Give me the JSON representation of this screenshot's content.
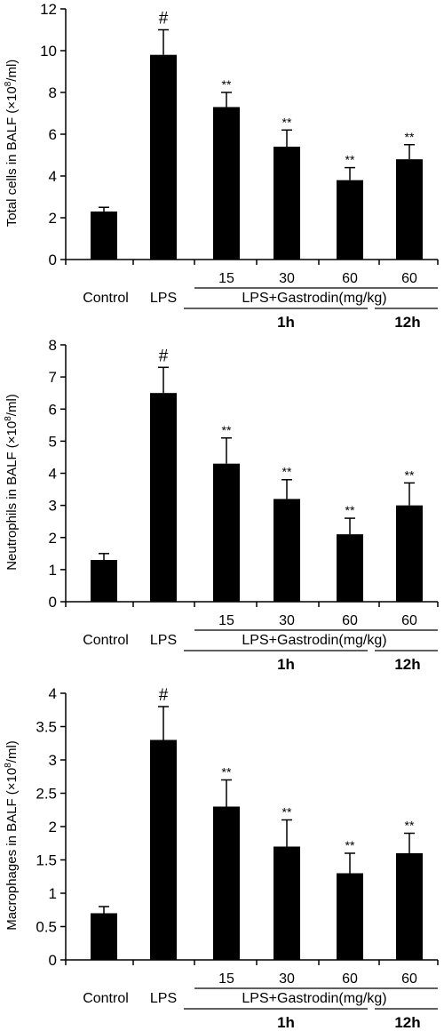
{
  "theme": {
    "bar_color": "#000000",
    "axis_color": "#000000",
    "background": "#ffffff"
  },
  "labels": {
    "group": "LPS+Gastrodin(mg/kg)",
    "time_1h": "1h",
    "time_12h": "12h"
  },
  "chart_data": [
    {
      "type": "bar",
      "title": "",
      "ylabel": "Total cells in BALF (×10⁸/ml)",
      "ylabel_main": "Total cells in BALF (×10",
      "ylabel_sup": "8",
      "ylabel_tail": "/ml)",
      "categories": [
        "Control",
        "LPS",
        "15",
        "30",
        "60",
        "60"
      ],
      "values": [
        2.3,
        9.8,
        7.3,
        5.4,
        3.8,
        4.8
      ],
      "errors": [
        0.2,
        1.2,
        0.7,
        0.8,
        0.6,
        0.7
      ],
      "significance": [
        "",
        "#",
        "**",
        "**",
        "**",
        "**"
      ],
      "ylim": [
        0,
        12
      ],
      "yticks": [
        "0",
        "2",
        "4",
        "6",
        "8",
        "10",
        "12"
      ],
      "grid": false
    },
    {
      "type": "bar",
      "title": "",
      "ylabel": "Neutrophils in BALF (×10⁸/ml)",
      "ylabel_main": "Neutrophils in BALF (×10",
      "ylabel_sup": "8",
      "ylabel_tail": "/ml)",
      "categories": [
        "Control",
        "LPS",
        "15",
        "30",
        "60",
        "60"
      ],
      "values": [
        1.3,
        6.5,
        4.3,
        3.2,
        2.1,
        3.0
      ],
      "errors": [
        0.2,
        0.8,
        0.8,
        0.6,
        0.5,
        0.7
      ],
      "significance": [
        "",
        "#",
        "**",
        "**",
        "**",
        "**"
      ],
      "ylim": [
        0,
        8
      ],
      "yticks": [
        "0",
        "1",
        "2",
        "3",
        "4",
        "5",
        "6",
        "7",
        "8"
      ],
      "grid": false
    },
    {
      "type": "bar",
      "title": "",
      "ylabel": "Macrophages in BALF (×10⁸/ml)",
      "ylabel_main": "Macrophages in BALF (×10",
      "ylabel_sup": "8",
      "ylabel_tail": "/ml)",
      "categories": [
        "Control",
        "LPS",
        "15",
        "30",
        "60",
        "60"
      ],
      "values": [
        0.7,
        3.3,
        2.3,
        1.7,
        1.3,
        1.6
      ],
      "errors": [
        0.1,
        0.5,
        0.4,
        0.4,
        0.3,
        0.3
      ],
      "significance": [
        "",
        "#",
        "**",
        "**",
        "**",
        "**"
      ],
      "ylim": [
        0,
        4
      ],
      "yticks": [
        "0",
        "0.5",
        "1",
        "1.5",
        "2",
        "2.5",
        "3",
        "3.5",
        "4"
      ],
      "grid": false
    }
  ]
}
